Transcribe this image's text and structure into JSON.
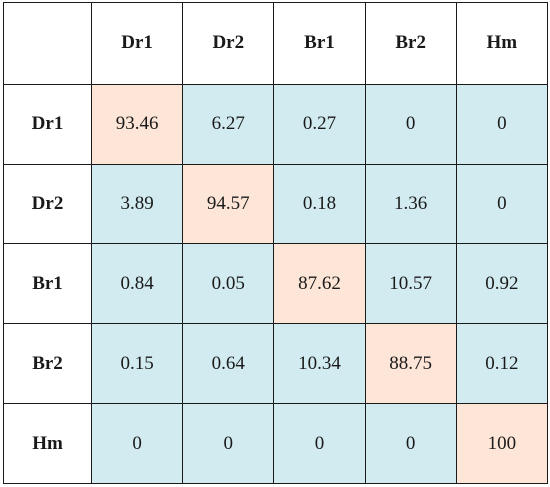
{
  "chart_data": {
    "type": "heatmap",
    "columns": [
      "Dr1",
      "Dr2",
      "Br1",
      "Br2",
      "Hm"
    ],
    "rows": [
      "Dr1",
      "Dr2",
      "Br1",
      "Br2",
      "Hm"
    ],
    "values": [
      [
        "93.46",
        "6.27",
        "0.27",
        "0",
        "0"
      ],
      [
        "3.89",
        "94.57",
        "0.18",
        "1.36",
        "0"
      ],
      [
        "0.84",
        "0.05",
        "87.62",
        "10.57",
        "0.92"
      ],
      [
        "0.15",
        "0.64",
        "10.34",
        "88.75",
        "0.12"
      ],
      [
        "0",
        "0",
        "0",
        "0",
        "100"
      ]
    ],
    "colors": {
      "diagonal": "#fde6d7",
      "off_diagonal": "#d2ebf0",
      "header": "#ffffff",
      "border": "#1a1a1a"
    }
  }
}
